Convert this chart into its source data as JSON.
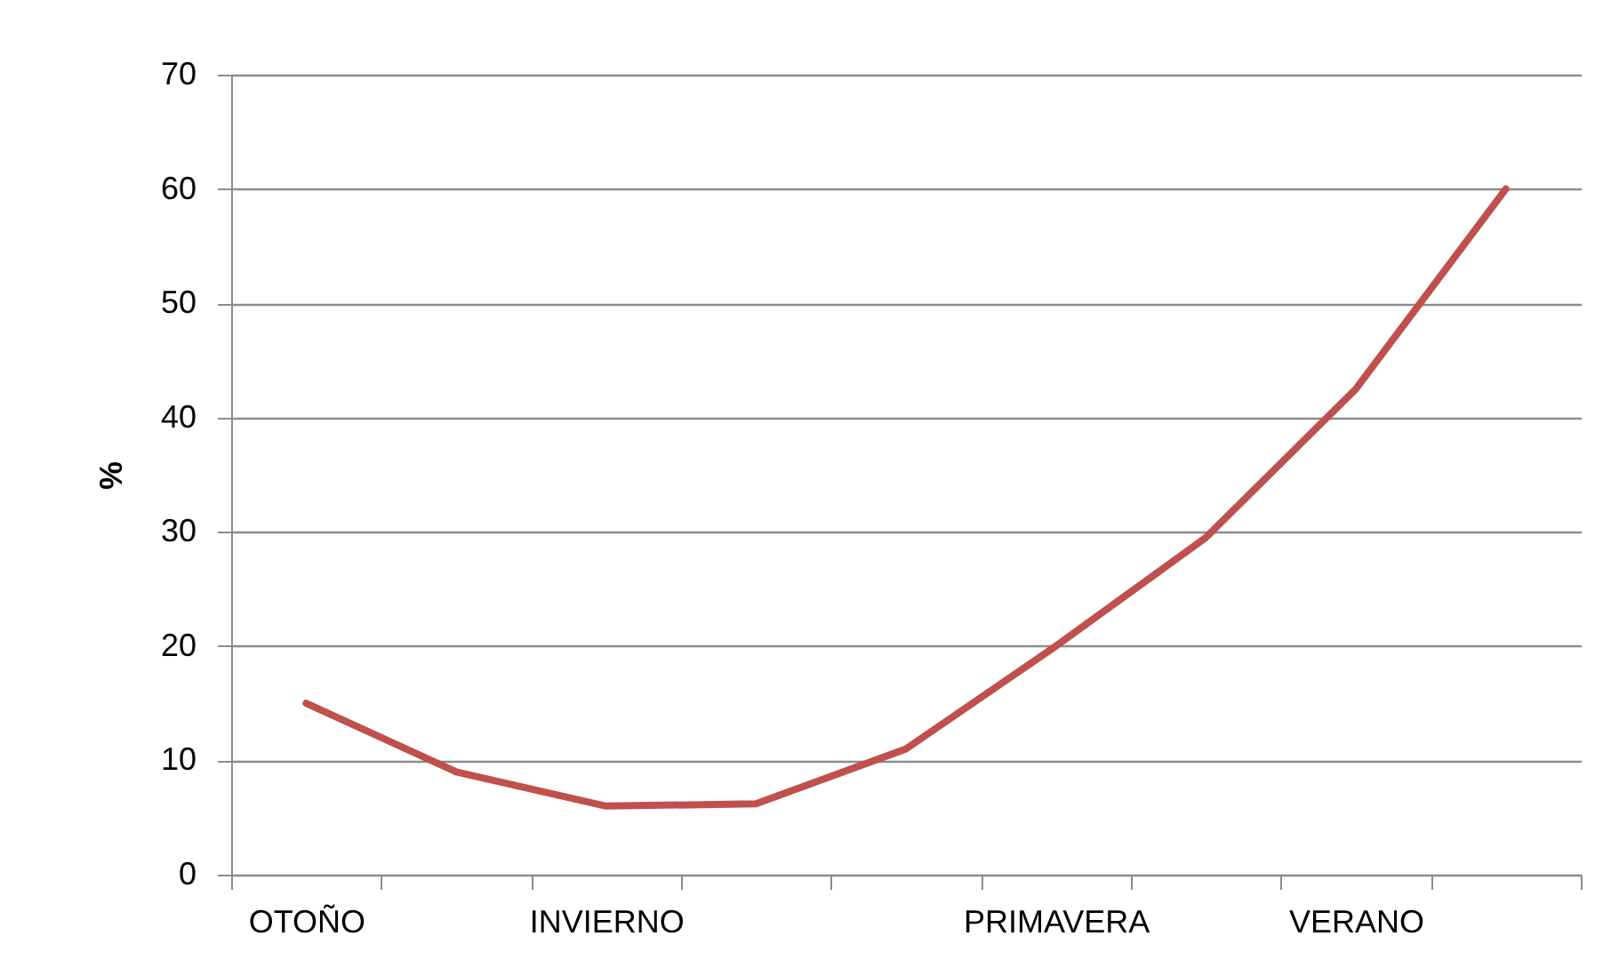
{
  "chart_data": {
    "type": "line",
    "ylabel": "%",
    "categories": [
      "OTOÑO",
      null,
      "INVIERNO",
      null,
      null,
      "PRIMAVERA",
      null,
      "VERANO",
      null
    ],
    "series": [
      {
        "color": "#c0504d",
        "values": [
          15,
          9,
          6,
          6.2,
          11,
          20,
          29.5,
          42.5,
          60
        ]
      }
    ],
    "ylim": [
      0,
      70
    ],
    "yticks": [
      0,
      10,
      20,
      30,
      40,
      50,
      60,
      70
    ],
    "grid": "y",
    "legend": false,
    "marker": "none",
    "line_style": "solid"
  }
}
